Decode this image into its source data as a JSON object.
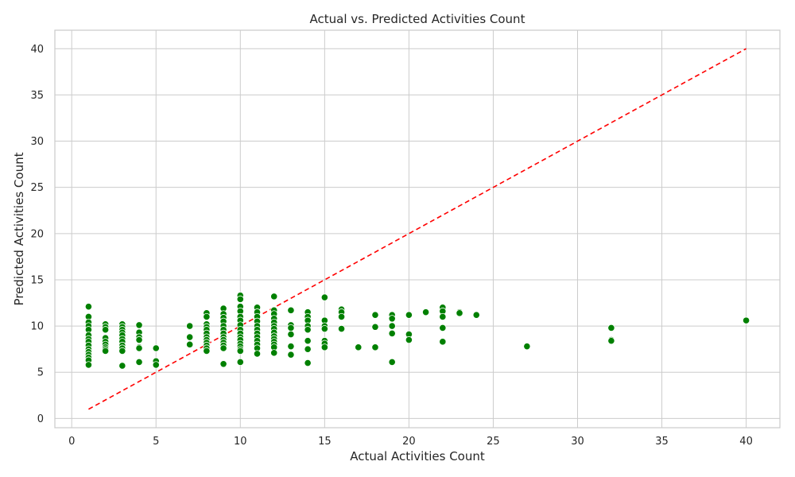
{
  "chart_data": {
    "type": "scatter",
    "title": "Actual vs. Predicted Activities Count",
    "xlabel": "Actual Activities Count",
    "ylabel": "Predicted Activities Count",
    "xlim": [
      -1,
      42
    ],
    "ylim": [
      -1,
      42
    ],
    "xticks": [
      0,
      5,
      10,
      15,
      20,
      25,
      30,
      35,
      40
    ],
    "yticks": [
      0,
      5,
      10,
      15,
      20,
      25,
      30,
      35,
      40
    ],
    "grid": true,
    "colors": {
      "points": "#008000",
      "reference_line": "#ff0000",
      "grid": "#cccccc"
    },
    "reference_line": {
      "style": "dashed",
      "from": [
        1,
        1
      ],
      "to": [
        40,
        40
      ]
    },
    "series": [
      {
        "points": [
          [
            1,
            12.1
          ],
          [
            1,
            11.0
          ],
          [
            1,
            10.4
          ],
          [
            1,
            10.0
          ],
          [
            1,
            9.6
          ],
          [
            1,
            9.0
          ],
          [
            1,
            8.6
          ],
          [
            1,
            8.3
          ],
          [
            1,
            7.9
          ],
          [
            1,
            7.5
          ],
          [
            1,
            7.2
          ],
          [
            1,
            6.9
          ],
          [
            1,
            6.6
          ],
          [
            1,
            6.3
          ],
          [
            1,
            5.8
          ],
          [
            2,
            10.2
          ],
          [
            2,
            9.9
          ],
          [
            2,
            9.6
          ],
          [
            2,
            8.7
          ],
          [
            2,
            8.3
          ],
          [
            2,
            8.0
          ],
          [
            2,
            7.7
          ],
          [
            2,
            7.5
          ],
          [
            2,
            7.3
          ],
          [
            3,
            10.2
          ],
          [
            3,
            9.9
          ],
          [
            3,
            9.6
          ],
          [
            3,
            9.3
          ],
          [
            3,
            9.0
          ],
          [
            3,
            8.6
          ],
          [
            3,
            8.3
          ],
          [
            3,
            7.9
          ],
          [
            3,
            7.6
          ],
          [
            3,
            7.3
          ],
          [
            3,
            5.7
          ],
          [
            4,
            10.1
          ],
          [
            4,
            9.3
          ],
          [
            4,
            8.8
          ],
          [
            4,
            8.5
          ],
          [
            4,
            7.7
          ],
          [
            4,
            7.6
          ],
          [
            4,
            6.1
          ],
          [
            5,
            7.6
          ],
          [
            5,
            6.2
          ],
          [
            5,
            5.8
          ],
          [
            7,
            10.0
          ],
          [
            7,
            8.8
          ],
          [
            7,
            8.0
          ],
          [
            8,
            11.4
          ],
          [
            8,
            11.0
          ],
          [
            8,
            10.2
          ],
          [
            8,
            9.9
          ],
          [
            8,
            9.6
          ],
          [
            8,
            9.2
          ],
          [
            8,
            8.8
          ],
          [
            8,
            8.5
          ],
          [
            8,
            8.2
          ],
          [
            8,
            7.9
          ],
          [
            8,
            7.6
          ],
          [
            8,
            7.3
          ],
          [
            9,
            11.9
          ],
          [
            9,
            11.3
          ],
          [
            9,
            10.9
          ],
          [
            9,
            10.5
          ],
          [
            9,
            10.0
          ],
          [
            9,
            9.6
          ],
          [
            9,
            9.2
          ],
          [
            9,
            8.8
          ],
          [
            9,
            8.5
          ],
          [
            9,
            8.2
          ],
          [
            9,
            7.9
          ],
          [
            9,
            7.6
          ],
          [
            9,
            5.9
          ],
          [
            10,
            13.3
          ],
          [
            10,
            12.9
          ],
          [
            10,
            12.1
          ],
          [
            10,
            11.6
          ],
          [
            10,
            11.0
          ],
          [
            10,
            10.6
          ],
          [
            10,
            10.1
          ],
          [
            10,
            9.6
          ],
          [
            10,
            9.2
          ],
          [
            10,
            8.8
          ],
          [
            10,
            8.5
          ],
          [
            10,
            8.1
          ],
          [
            10,
            7.8
          ],
          [
            10,
            7.5
          ],
          [
            10,
            7.3
          ],
          [
            10,
            6.1
          ],
          [
            11,
            12.0
          ],
          [
            11,
            11.5
          ],
          [
            11,
            11.0
          ],
          [
            11,
            10.5
          ],
          [
            11,
            10.0
          ],
          [
            11,
            9.6
          ],
          [
            11,
            9.2
          ],
          [
            11,
            8.8
          ],
          [
            11,
            8.4
          ],
          [
            11,
            8.0
          ],
          [
            11,
            7.6
          ],
          [
            11,
            7.0
          ],
          [
            12,
            13.2
          ],
          [
            12,
            11.7
          ],
          [
            12,
            11.3
          ],
          [
            12,
            10.8
          ],
          [
            12,
            10.4
          ],
          [
            12,
            10.0
          ],
          [
            12,
            9.7
          ],
          [
            12,
            9.3
          ],
          [
            12,
            8.9
          ],
          [
            12,
            8.6
          ],
          [
            12,
            8.3
          ],
          [
            12,
            8.0
          ],
          [
            12,
            7.7
          ],
          [
            12,
            7.1
          ],
          [
            13,
            11.7
          ],
          [
            13,
            10.1
          ],
          [
            13,
            9.8
          ],
          [
            13,
            9.1
          ],
          [
            13,
            7.8
          ],
          [
            13,
            6.9
          ],
          [
            14,
            11.5
          ],
          [
            14,
            11.0
          ],
          [
            14,
            10.6
          ],
          [
            14,
            10.0
          ],
          [
            14,
            9.6
          ],
          [
            14,
            8.4
          ],
          [
            14,
            7.5
          ],
          [
            14,
            6.0
          ],
          [
            15,
            13.1
          ],
          [
            15,
            10.6
          ],
          [
            15,
            10.0
          ],
          [
            15,
            9.7
          ],
          [
            15,
            8.4
          ],
          [
            15,
            8.1
          ],
          [
            15,
            7.7
          ],
          [
            16,
            11.8
          ],
          [
            16,
            11.5
          ],
          [
            16,
            11.0
          ],
          [
            16,
            9.7
          ],
          [
            17,
            7.7
          ],
          [
            18,
            11.2
          ],
          [
            18,
            9.9
          ],
          [
            18,
            7.7
          ],
          [
            19,
            11.2
          ],
          [
            19,
            10.8
          ],
          [
            19,
            10.0
          ],
          [
            19,
            9.2
          ],
          [
            19,
            6.1
          ],
          [
            20,
            11.2
          ],
          [
            20,
            9.1
          ],
          [
            20,
            8.5
          ],
          [
            21,
            11.5
          ],
          [
            22,
            12.0
          ],
          [
            22,
            11.6
          ],
          [
            22,
            11.0
          ],
          [
            22,
            9.8
          ],
          [
            22,
            8.3
          ],
          [
            23,
            11.5
          ],
          [
            23,
            11.4
          ],
          [
            24,
            11.2
          ],
          [
            27,
            7.8
          ],
          [
            32,
            9.8
          ],
          [
            32,
            8.5
          ],
          [
            32,
            8.4
          ],
          [
            40,
            10.6
          ]
        ]
      }
    ]
  }
}
